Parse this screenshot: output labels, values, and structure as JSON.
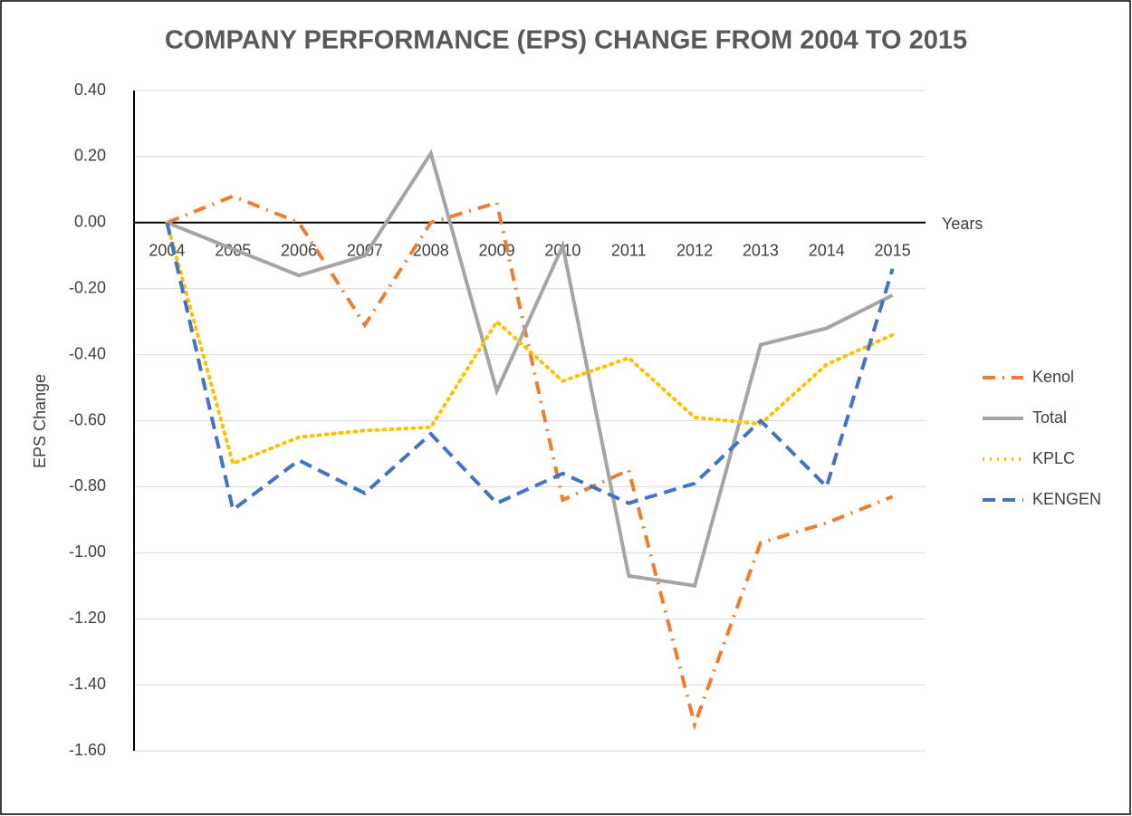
{
  "chart_data": {
    "type": "line",
    "title": "COMPANY PERFORMANCE (EPS) CHANGE FROM 2004 TO 2015",
    "x_label": "Years",
    "y_label": "EPS Change",
    "categories": [
      "2004",
      "2005",
      "2006",
      "2007",
      "2008",
      "2009",
      "2010",
      "2011",
      "2012",
      "2013",
      "2014",
      "2015"
    ],
    "series": [
      {
        "name": "Kenol",
        "color": "#ed7d31",
        "dash": "dash-dot",
        "values": [
          0,
          0.08,
          0.0,
          -0.31,
          0.0,
          0.06,
          -0.84,
          -0.75,
          -1.52,
          -0.97,
          -0.91,
          -0.83
        ]
      },
      {
        "name": "Total",
        "color": "#a5a5a5",
        "dash": "solid",
        "values": [
          0,
          -0.08,
          -0.16,
          -0.1,
          0.21,
          -0.51,
          -0.07,
          -1.07,
          -1.1,
          -0.37,
          -0.32,
          -0.22
        ]
      },
      {
        "name": "KPLC",
        "color": "#ffc000",
        "dash": "dot",
        "values": [
          0,
          -0.73,
          -0.65,
          -0.63,
          -0.62,
          -0.3,
          -0.48,
          -0.41,
          -0.59,
          -0.61,
          -0.43,
          -0.34
        ]
      },
      {
        "name": "KENGEN",
        "color": "#4472c4",
        "dash": "dash",
        "values": [
          0,
          -0.87,
          -0.72,
          -0.82,
          -0.64,
          -0.85,
          -0.76,
          -0.85,
          -0.79,
          -0.6,
          -0.8,
          -0.14
        ]
      }
    ],
    "ylim": [
      -1.6,
      0.4
    ],
    "yticks": [
      {
        "value": -1.6,
        "label": "-1.60"
      },
      {
        "value": -1.4,
        "label": "-1.40"
      },
      {
        "value": -1.2,
        "label": "-1.20"
      },
      {
        "value": -1,
        "label": "-1.00"
      },
      {
        "value": -0.8,
        "label": "-0.80"
      },
      {
        "value": -0.6,
        "label": "-0.60"
      },
      {
        "value": -0.4,
        "label": "-0.40"
      },
      {
        "value": -0.2,
        "label": "-0.20"
      },
      {
        "value": 0,
        "label": "0.00"
      },
      {
        "value": 0.2,
        "label": "0.20"
      },
      {
        "value": 0.4,
        "label": "0.40"
      }
    ],
    "grid": true,
    "legend": "right"
  }
}
